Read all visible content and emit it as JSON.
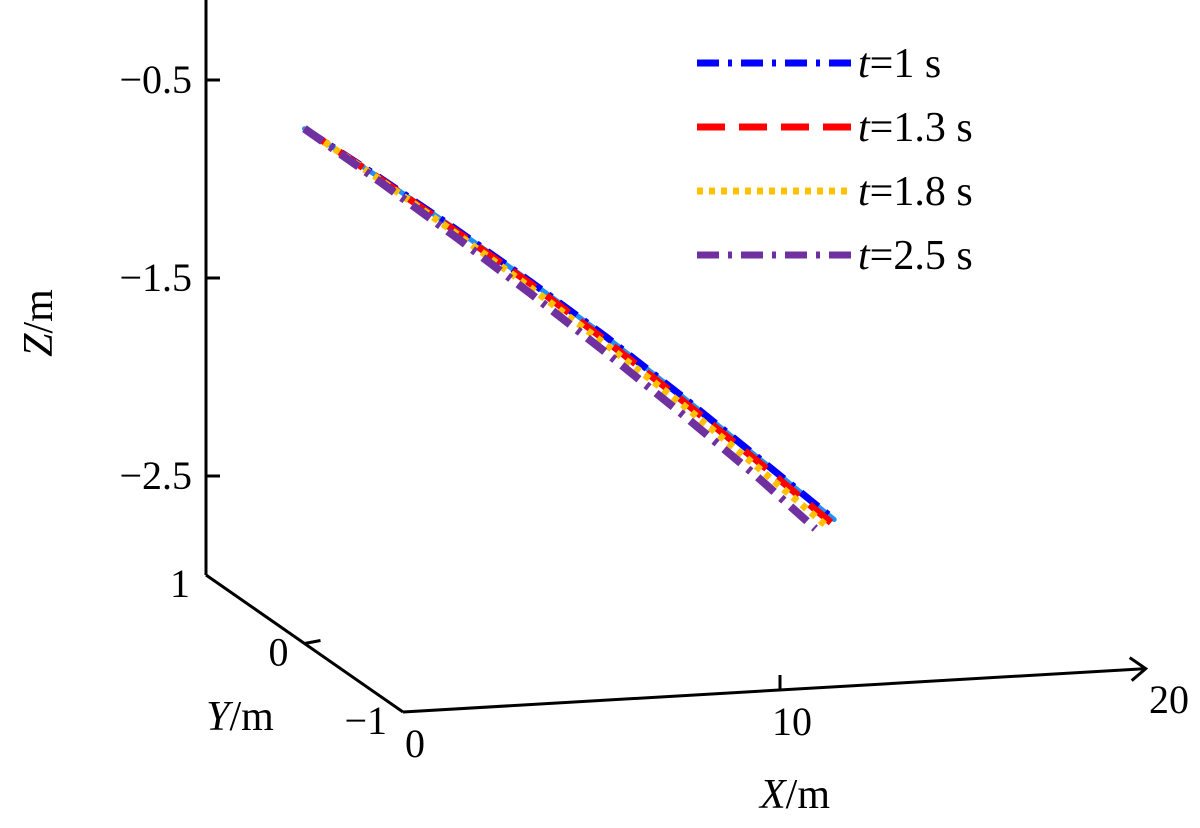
{
  "chart_data": {
    "type": "line",
    "projection": "3d",
    "x_axis": {
      "label_var": "X",
      "label_unit": "/m",
      "range": [
        0,
        20
      ],
      "ticks": [
        "0",
        "10",
        "20"
      ]
    },
    "y_axis": {
      "label_var": "Y",
      "label_unit": "/m",
      "range": [
        -1,
        1
      ],
      "ticks": [
        "−1",
        "0",
        "1"
      ]
    },
    "z_axis": {
      "label_var": "Z",
      "label_unit": "/m",
      "range": [
        -3,
        0
      ],
      "ticks": [
        "−0.5",
        "−1.5",
        "−2.5"
      ]
    },
    "grid": false,
    "legend_position": "top-right",
    "series": [
      {
        "name_var": "t",
        "name_rest": "=1 s",
        "color": "#0000FF",
        "dash": "dashdot",
        "x": [
          0,
          2,
          4,
          6,
          8,
          10,
          12,
          14.05
        ],
        "y": [
          0,
          0,
          0,
          0,
          0,
          0,
          0,
          0
        ],
        "z": [
          -0.4,
          -0.67,
          -0.95,
          -1.24,
          -1.54,
          -1.86,
          -2.19,
          -2.53
        ]
      },
      {
        "name_var": "t",
        "name_rest": "=1.3 s",
        "color": "#FF0000",
        "dash": "dashed",
        "x": [
          0,
          2,
          4,
          6,
          8,
          10,
          12,
          14.0
        ],
        "y": [
          0,
          0,
          0,
          0,
          0,
          0,
          0,
          0
        ],
        "z": [
          -0.4,
          -0.675,
          -0.96,
          -1.25,
          -1.56,
          -1.88,
          -2.21,
          -2.55
        ]
      },
      {
        "name_var": "t",
        "name_rest": "=1.8 s",
        "color": "#FFC000",
        "dash": "dotted",
        "x": [
          0,
          2,
          4,
          6,
          8,
          10,
          12,
          13.85
        ],
        "y": [
          0,
          0,
          0,
          0,
          0,
          0,
          0,
          0
        ],
        "z": [
          -0.4,
          -0.68,
          -0.97,
          -1.27,
          -1.58,
          -1.9,
          -2.24,
          -2.56
        ]
      },
      {
        "name_var": "t",
        "name_rest": "=2.5 s",
        "color": "#7030A0",
        "dash": "dashdot",
        "x": [
          0,
          2,
          4,
          6,
          8,
          10,
          12,
          13.55
        ],
        "y": [
          0,
          0,
          0,
          0,
          0,
          0,
          0,
          0
        ],
        "z": [
          -0.4,
          -0.69,
          -0.99,
          -1.3,
          -1.62,
          -1.95,
          -2.29,
          -2.57
        ]
      }
    ],
    "backbone_color": "#1E90FF"
  }
}
